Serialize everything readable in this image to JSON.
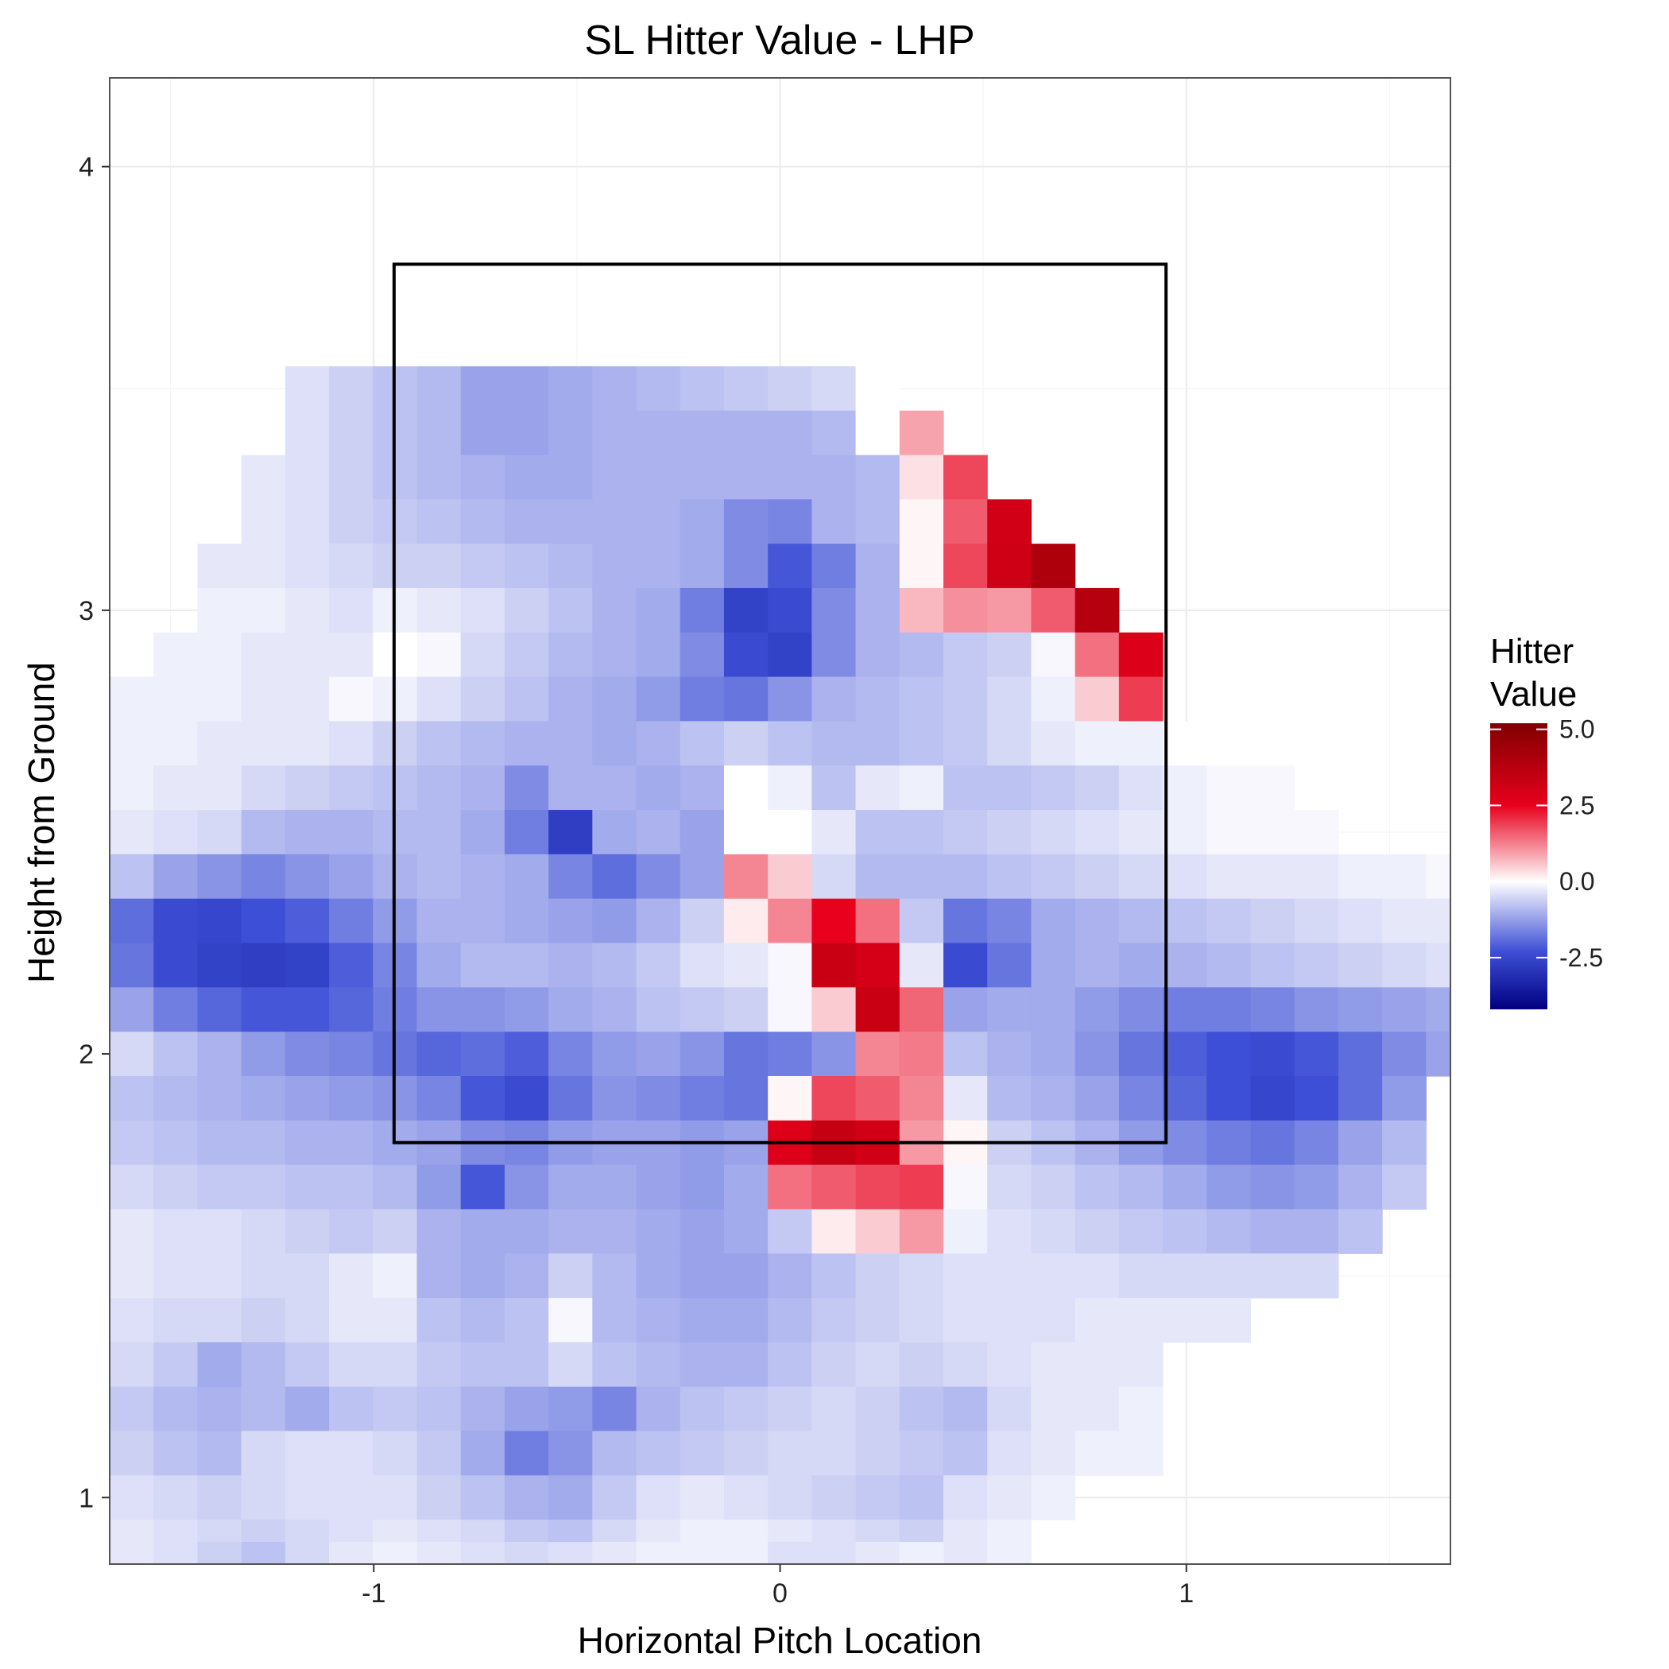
{
  "chart_data": {
    "type": "heatmap",
    "title": "SL Hitter Value - LHP",
    "xlabel": "Horizontal Pitch Location",
    "ylabel": "Height from Ground",
    "xlim": [
      -1.65,
      1.65
    ],
    "ylim": [
      0.85,
      4.2
    ],
    "x_ticks": [
      -1,
      0,
      1
    ],
    "x_tick_labels": [
      "-1",
      "0",
      "1"
    ],
    "y_ticks": [
      1,
      2,
      3,
      4
    ],
    "y_tick_labels": [
      "1",
      "2",
      "3",
      "4"
    ],
    "grid": true,
    "strike_zone": {
      "x": [
        -0.95,
        0.95
      ],
      "y": [
        1.8,
        3.78
      ]
    },
    "cell_size": {
      "x": 0.108,
      "y": 0.1
    },
    "grid_x0": -1.65,
    "grid_y0": 0.85,
    "legend": {
      "title": "Hitter Value",
      "position": "right",
      "labels": [
        "5.0",
        "2.5",
        "0.0",
        "-2.5"
      ],
      "values": [
        5.0,
        2.5,
        0.0,
        -2.5
      ],
      "min": -4.2,
      "max": 5.2
    },
    "colors": {
      "low": "#000080",
      "mid_low": "#3d4fd6",
      "mid": "#ffffff",
      "high": "#e8001c",
      "top": "#800000"
    },
    "rows": [
      {
        "y": 3.5,
        "from": 4,
        "values": [
          -0.4,
          -0.6,
          -0.8,
          -0.9,
          -1.2,
          -1.2,
          -1.1,
          -1.0,
          -0.9,
          -0.8,
          -0.7,
          -0.6,
          -0.5,
          0.0
        ]
      },
      {
        "y": 3.4,
        "from": 4,
        "values": [
          -0.4,
          -0.6,
          -0.8,
          -0.9,
          -1.2,
          -1.2,
          -1.1,
          -1.0,
          -1.0,
          -1.0,
          -1.0,
          -1.0,
          -0.9,
          0.0,
          0.9
        ]
      },
      {
        "y": 3.3,
        "from": 3,
        "values": [
          -0.3,
          -0.4,
          -0.6,
          -0.8,
          -0.9,
          -1.0,
          -1.1,
          -1.1,
          -1.0,
          -1.0,
          -1.0,
          -1.0,
          -1.0,
          -1.0,
          -0.9,
          0.3,
          1.8
        ]
      },
      {
        "y": 3.2,
        "from": 3,
        "values": [
          -0.3,
          -0.4,
          -0.6,
          -0.7,
          -0.8,
          -0.9,
          -1.0,
          -1.0,
          -1.0,
          -1.0,
          -1.1,
          -1.5,
          -1.6,
          -1.0,
          -0.9,
          0.1,
          1.6,
          3.1
        ]
      },
      {
        "y": 3.1,
        "from": 2,
        "values": [
          -0.3,
          -0.3,
          -0.4,
          -0.5,
          -0.6,
          -0.6,
          -0.7,
          -0.8,
          -0.9,
          -1.0,
          -1.0,
          -1.1,
          -1.5,
          -2.2,
          -1.7,
          -1.0,
          0.1,
          1.8,
          3.2,
          4.0
        ]
      },
      {
        "y": 3.0,
        "from": 2,
        "values": [
          -0.2,
          -0.2,
          -0.3,
          -0.4,
          -0.2,
          -0.3,
          -0.4,
          -0.6,
          -0.8,
          -1.0,
          -1.1,
          -1.7,
          -2.6,
          -2.4,
          -1.5,
          -1.0,
          0.7,
          1.1,
          1.0,
          1.6,
          3.8
        ]
      },
      {
        "y": 2.9,
        "from": 1,
        "values": [
          -0.2,
          -0.2,
          -0.3,
          -0.3,
          -0.3,
          0.0,
          -0.1,
          -0.5,
          -0.7,
          -0.9,
          -1.0,
          -1.1,
          -1.5,
          -2.4,
          -2.6,
          -1.5,
          -1.0,
          -0.9,
          -0.7,
          -0.6,
          -0.1,
          1.4,
          2.8
        ]
      },
      {
        "y": 2.8,
        "from": 0,
        "values": [
          -0.2,
          -0.2,
          -0.2,
          -0.3,
          -0.3,
          -0.1,
          -0.2,
          -0.4,
          -0.6,
          -0.8,
          -1.0,
          -1.1,
          -1.3,
          -1.7,
          -1.8,
          -1.4,
          -1.0,
          -0.9,
          -0.8,
          -0.7,
          -0.5,
          -0.2,
          0.5,
          1.9
        ]
      },
      {
        "y": 2.7,
        "from": 0,
        "values": [
          -0.2,
          -0.2,
          -0.3,
          -0.3,
          -0.3,
          -0.4,
          -0.6,
          -0.8,
          -0.9,
          -1.0,
          -1.0,
          -1.1,
          -1.0,
          -0.8,
          -0.6,
          -0.8,
          -0.9,
          -0.9,
          -0.8,
          -0.7,
          -0.5,
          -0.3,
          -0.2,
          -0.2,
          0.0
        ]
      },
      {
        "y": 2.6,
        "from": 0,
        "values": [
          -0.2,
          -0.3,
          -0.3,
          -0.5,
          -0.6,
          -0.7,
          -0.8,
          -0.9,
          -1.0,
          -1.5,
          -1.0,
          -1.0,
          -1.1,
          -1.0,
          0.0,
          -0.2,
          -0.8,
          -0.3,
          -0.2,
          -0.8,
          -0.8,
          -0.7,
          -0.6,
          -0.4,
          -0.2,
          -0.1,
          -0.1
        ]
      },
      {
        "y": 2.5,
        "from": 0,
        "values": [
          -0.3,
          -0.4,
          -0.5,
          -0.9,
          -1.0,
          -1.0,
          -0.9,
          -0.9,
          -1.1,
          -1.7,
          -2.7,
          -1.1,
          -1.0,
          -1.2,
          0.0,
          0.0,
          -0.3,
          -0.8,
          -0.8,
          -0.7,
          -0.6,
          -0.5,
          -0.4,
          -0.3,
          -0.2,
          -0.1,
          -0.1,
          -0.1
        ]
      },
      {
        "y": 2.4,
        "from": 0,
        "values": [
          -0.8,
          -1.2,
          -1.4,
          -1.6,
          -1.4,
          -1.2,
          -1.0,
          -0.9,
          -1.0,
          -1.1,
          -1.6,
          -1.9,
          -1.5,
          -1.2,
          1.2,
          0.5,
          -0.5,
          -0.9,
          -0.9,
          -0.9,
          -0.8,
          -0.7,
          -0.6,
          -0.5,
          -0.4,
          -0.3,
          -0.3,
          -0.3,
          -0.2,
          -0.2,
          -0.1
        ]
      },
      {
        "y": 2.3,
        "from": 0,
        "values": [
          -1.9,
          -2.4,
          -2.5,
          -2.3,
          -2.1,
          -1.7,
          -1.3,
          -1.0,
          -1.0,
          -1.1,
          -1.2,
          -1.3,
          -1.0,
          -0.6,
          0.2,
          1.2,
          2.5,
          1.4,
          -0.7,
          -1.8,
          -1.6,
          -1.1,
          -1.0,
          -0.9,
          -0.8,
          -0.7,
          -0.6,
          -0.5,
          -0.4,
          -0.3,
          -0.3
        ]
      },
      {
        "y": 2.2,
        "from": 0,
        "values": [
          -1.8,
          -2.4,
          -2.6,
          -2.7,
          -2.6,
          -2.1,
          -1.6,
          -1.1,
          -0.9,
          -0.9,
          -1.0,
          -0.9,
          -0.7,
          -0.4,
          -0.3,
          -0.1,
          3.3,
          3.0,
          -0.3,
          -2.4,
          -1.8,
          -1.1,
          -1.0,
          -1.1,
          -1.0,
          -0.9,
          -0.8,
          -0.7,
          -0.6,
          -0.5,
          -0.4,
          -0.3
        ]
      },
      {
        "y": 2.1,
        "from": 0,
        "values": [
          -1.2,
          -1.7,
          -2.0,
          -2.2,
          -2.2,
          -2.0,
          -1.7,
          -1.4,
          -1.4,
          -1.3,
          -1.1,
          -1.0,
          -0.8,
          -0.7,
          -0.6,
          -0.1,
          0.5,
          3.3,
          1.5,
          -1.2,
          -1.1,
          -1.1,
          -1.3,
          -1.5,
          -1.7,
          -1.7,
          -1.6,
          -1.4,
          -1.3,
          -1.2,
          -1.1,
          -0.5
        ]
      },
      {
        "y": 2.0,
        "from": 0,
        "values": [
          -0.5,
          -0.8,
          -1.0,
          -1.3,
          -1.5,
          -1.6,
          -1.8,
          -2.0,
          -1.9,
          -2.1,
          -1.6,
          -1.3,
          -1.2,
          -1.4,
          -1.8,
          -1.7,
          -1.4,
          1.2,
          1.3,
          -0.8,
          -1.0,
          -1.1,
          -1.4,
          -1.8,
          -2.1,
          -2.3,
          -2.4,
          -2.2,
          -1.9,
          -1.5,
          -1.2,
          -0.7
        ]
      },
      {
        "y": 1.9,
        "from": 0,
        "values": [
          -0.8,
          -0.9,
          -1.0,
          -1.1,
          -1.2,
          -1.3,
          -1.4,
          -1.6,
          -2.2,
          -2.4,
          -1.8,
          -1.4,
          -1.5,
          -1.7,
          -1.8,
          0.1,
          1.8,
          1.6,
          1.2,
          -0.3,
          -0.9,
          -1.0,
          -1.2,
          -1.6,
          -2.0,
          -2.3,
          -2.5,
          -2.3,
          -1.9,
          -1.3
        ]
      },
      {
        "y": 1.8,
        "from": 0,
        "values": [
          -0.7,
          -0.8,
          -0.9,
          -0.9,
          -1.0,
          -1.0,
          -1.1,
          -1.2,
          -1.5,
          -1.6,
          -1.3,
          -1.2,
          -1.2,
          -1.3,
          -1.2,
          2.8,
          3.4,
          3.1,
          1.0,
          0.1,
          -0.6,
          -0.8,
          -1.0,
          -1.3,
          -1.5,
          -1.7,
          -1.8,
          -1.6,
          -1.2,
          -0.9
        ]
      },
      {
        "y": 1.7,
        "from": 0,
        "values": [
          -0.5,
          -0.6,
          -0.7,
          -0.7,
          -0.8,
          -0.8,
          -0.9,
          -1.3,
          -2.2,
          -1.4,
          -1.1,
          -1.1,
          -1.2,
          -1.3,
          -1.1,
          1.4,
          1.6,
          1.8,
          1.9,
          -0.1,
          -0.5,
          -0.6,
          -0.8,
          -0.9,
          -1.1,
          -1.3,
          -1.4,
          -1.3,
          -1.0,
          -0.7
        ]
      },
      {
        "y": 1.6,
        "from": 0,
        "values": [
          -0.3,
          -0.4,
          -0.4,
          -0.5,
          -0.6,
          -0.7,
          -0.6,
          -1.0,
          -1.1,
          -1.1,
          -1.0,
          -1.0,
          -1.1,
          -1.2,
          -1.1,
          -0.7,
          0.2,
          0.5,
          1.0,
          -0.2,
          -0.4,
          -0.5,
          -0.6,
          -0.7,
          -0.8,
          -0.9,
          -1.0,
          -1.0,
          -0.8
        ]
      },
      {
        "y": 1.5,
        "from": 0,
        "values": [
          -0.3,
          -0.4,
          -0.4,
          -0.5,
          -0.5,
          -0.3,
          -0.2,
          -1.0,
          -1.1,
          -1.0,
          -0.6,
          -0.9,
          -1.1,
          -1.2,
          -1.2,
          -1.0,
          -0.8,
          -0.6,
          -0.5,
          -0.4,
          -0.4,
          -0.4,
          -0.4,
          -0.5,
          -0.5,
          -0.5,
          -0.5,
          -0.5
        ]
      },
      {
        "y": 1.4,
        "from": 0,
        "values": [
          -0.4,
          -0.5,
          -0.5,
          -0.6,
          -0.5,
          -0.3,
          -0.3,
          -0.8,
          -0.9,
          -0.8,
          -0.1,
          -0.9,
          -1.0,
          -1.1,
          -1.1,
          -0.9,
          -0.7,
          -0.6,
          -0.5,
          -0.4,
          -0.4,
          -0.4,
          -0.3,
          -0.3,
          -0.3,
          -0.3
        ]
      },
      {
        "y": 1.3,
        "from": 0,
        "values": [
          -0.5,
          -0.7,
          -1.1,
          -0.9,
          -0.7,
          -0.5,
          -0.5,
          -0.7,
          -0.8,
          -0.8,
          -0.5,
          -0.8,
          -0.9,
          -1.0,
          -1.0,
          -0.8,
          -0.6,
          -0.5,
          -0.6,
          -0.5,
          -0.4,
          -0.3,
          -0.3,
          -0.3
        ]
      },
      {
        "y": 1.2,
        "from": 0,
        "values": [
          -0.7,
          -0.9,
          -1.0,
          -0.9,
          -1.1,
          -0.8,
          -0.7,
          -0.8,
          -1.0,
          -1.2,
          -1.3,
          -1.6,
          -1.0,
          -0.8,
          -0.7,
          -0.6,
          -0.5,
          -0.6,
          -0.8,
          -0.9,
          -0.5,
          -0.3,
          -0.3,
          -0.2
        ]
      },
      {
        "y": 1.1,
        "from": 0,
        "values": [
          -0.6,
          -0.8,
          -0.9,
          -0.5,
          -0.4,
          -0.4,
          -0.5,
          -0.7,
          -1.1,
          -1.7,
          -1.4,
          -0.9,
          -0.8,
          -0.7,
          -0.6,
          -0.5,
          -0.5,
          -0.6,
          -0.7,
          -0.8,
          -0.4,
          -0.3,
          -0.2,
          -0.2
        ]
      },
      {
        "y": 1.0,
        "from": 0,
        "values": [
          -0.4,
          -0.5,
          -0.6,
          -0.5,
          -0.4,
          -0.4,
          -0.4,
          -0.6,
          -0.8,
          -1.0,
          -1.1,
          -0.7,
          -0.4,
          -0.3,
          -0.4,
          -0.5,
          -0.6,
          -0.7,
          -0.8,
          -0.4,
          -0.3,
          -0.2
        ]
      },
      {
        "y": 0.9,
        "from": 0,
        "values": [
          -0.3,
          -0.4,
          -0.5,
          -0.6,
          -0.5,
          -0.4,
          -0.3,
          -0.4,
          -0.5,
          -0.7,
          -0.8,
          -0.5,
          -0.3,
          -0.2,
          -0.2,
          -0.3,
          -0.4,
          -0.5,
          -0.6,
          -0.3,
          -0.2
        ]
      },
      {
        "y": 0.85,
        "from": 0,
        "values": [
          -0.3,
          -0.4,
          -0.6,
          -0.8,
          -0.5,
          -0.3,
          -0.2,
          -0.3,
          -0.4,
          -0.5,
          -0.4,
          -0.3,
          -0.2,
          -0.2,
          -0.2,
          -0.4,
          -0.4,
          -0.3,
          -0.2
        ]
      }
    ]
  }
}
